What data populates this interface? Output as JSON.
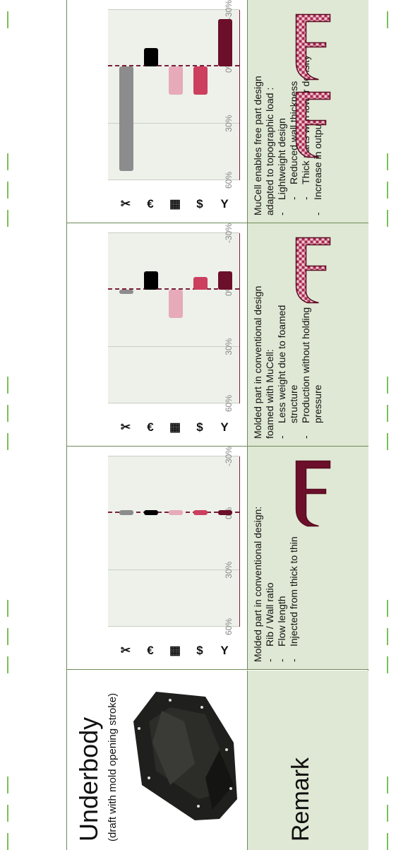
{
  "header": {
    "title": "Underbody",
    "subtitle": "(draft with mold opening stroke)"
  },
  "remark_label": "Remark",
  "axis_ticks": [
    "60%",
    "30%",
    "0%",
    "-30%"
  ],
  "icons": [
    {
      "name": "material-icon",
      "glyph": "Y"
    },
    {
      "name": "money-bag-icon",
      "glyph": "$"
    },
    {
      "name": "factory-icon",
      "glyph": "▦"
    },
    {
      "name": "euro-icon",
      "glyph": "€"
    },
    {
      "name": "tools-icon",
      "glyph": "✂"
    }
  ],
  "colors": {
    "bar1": "#6b0f2a",
    "bar2": "#cc3f5e",
    "bar3": "#e6aab9",
    "bar4": "#000000",
    "bar5": "#8c8c8c",
    "accent": "#7a1f3a",
    "panel_green": "#dfe8d4"
  },
  "chart_data": [
    {
      "type": "bar",
      "categories": [
        "material",
        "costs",
        "production",
        "price",
        "tooling"
      ],
      "values": [
        0,
        0,
        0,
        0,
        0
      ],
      "ylim": [
        -30,
        60
      ]
    },
    {
      "type": "bar",
      "categories": [
        "material",
        "costs",
        "production",
        "price",
        "tooling"
      ],
      "values": [
        -10,
        -7,
        15,
        -10,
        2
      ],
      "ylim": [
        -30,
        60
      ]
    },
    {
      "type": "bar",
      "categories": [
        "material",
        "costs",
        "production",
        "price",
        "tooling"
      ],
      "values": [
        -25,
        15,
        15,
        -10,
        55
      ],
      "ylim": [
        -30,
        60
      ]
    }
  ],
  "remarks": [
    {
      "intro": "Molded part in conventional design:",
      "items": [
        {
          "level": 1,
          "text": "Rib / Wall ratio"
        },
        {
          "level": 1,
          "text": "Flow length"
        },
        {
          "level": 1,
          "text": "Injected from thick to thin"
        }
      ]
    },
    {
      "intro": "Molded part in conventional design foamed with MuCell:",
      "items": [
        {
          "level": 1,
          "text": "Less weight due to foamed structure"
        },
        {
          "level": 1,
          "text": "Production without holding pressure"
        }
      ]
    },
    {
      "intro": "MuCell enables free part design adapted to topographic load :",
      "items": [
        {
          "level": 1,
          "text": "Lightweight design"
        },
        {
          "level": 2,
          "text": "Reduced wall thickness"
        },
        {
          "level": 2,
          "text": "Thick parts with lower density"
        },
        {
          "level": 1,
          "text": "Increase in output"
        }
      ]
    }
  ]
}
